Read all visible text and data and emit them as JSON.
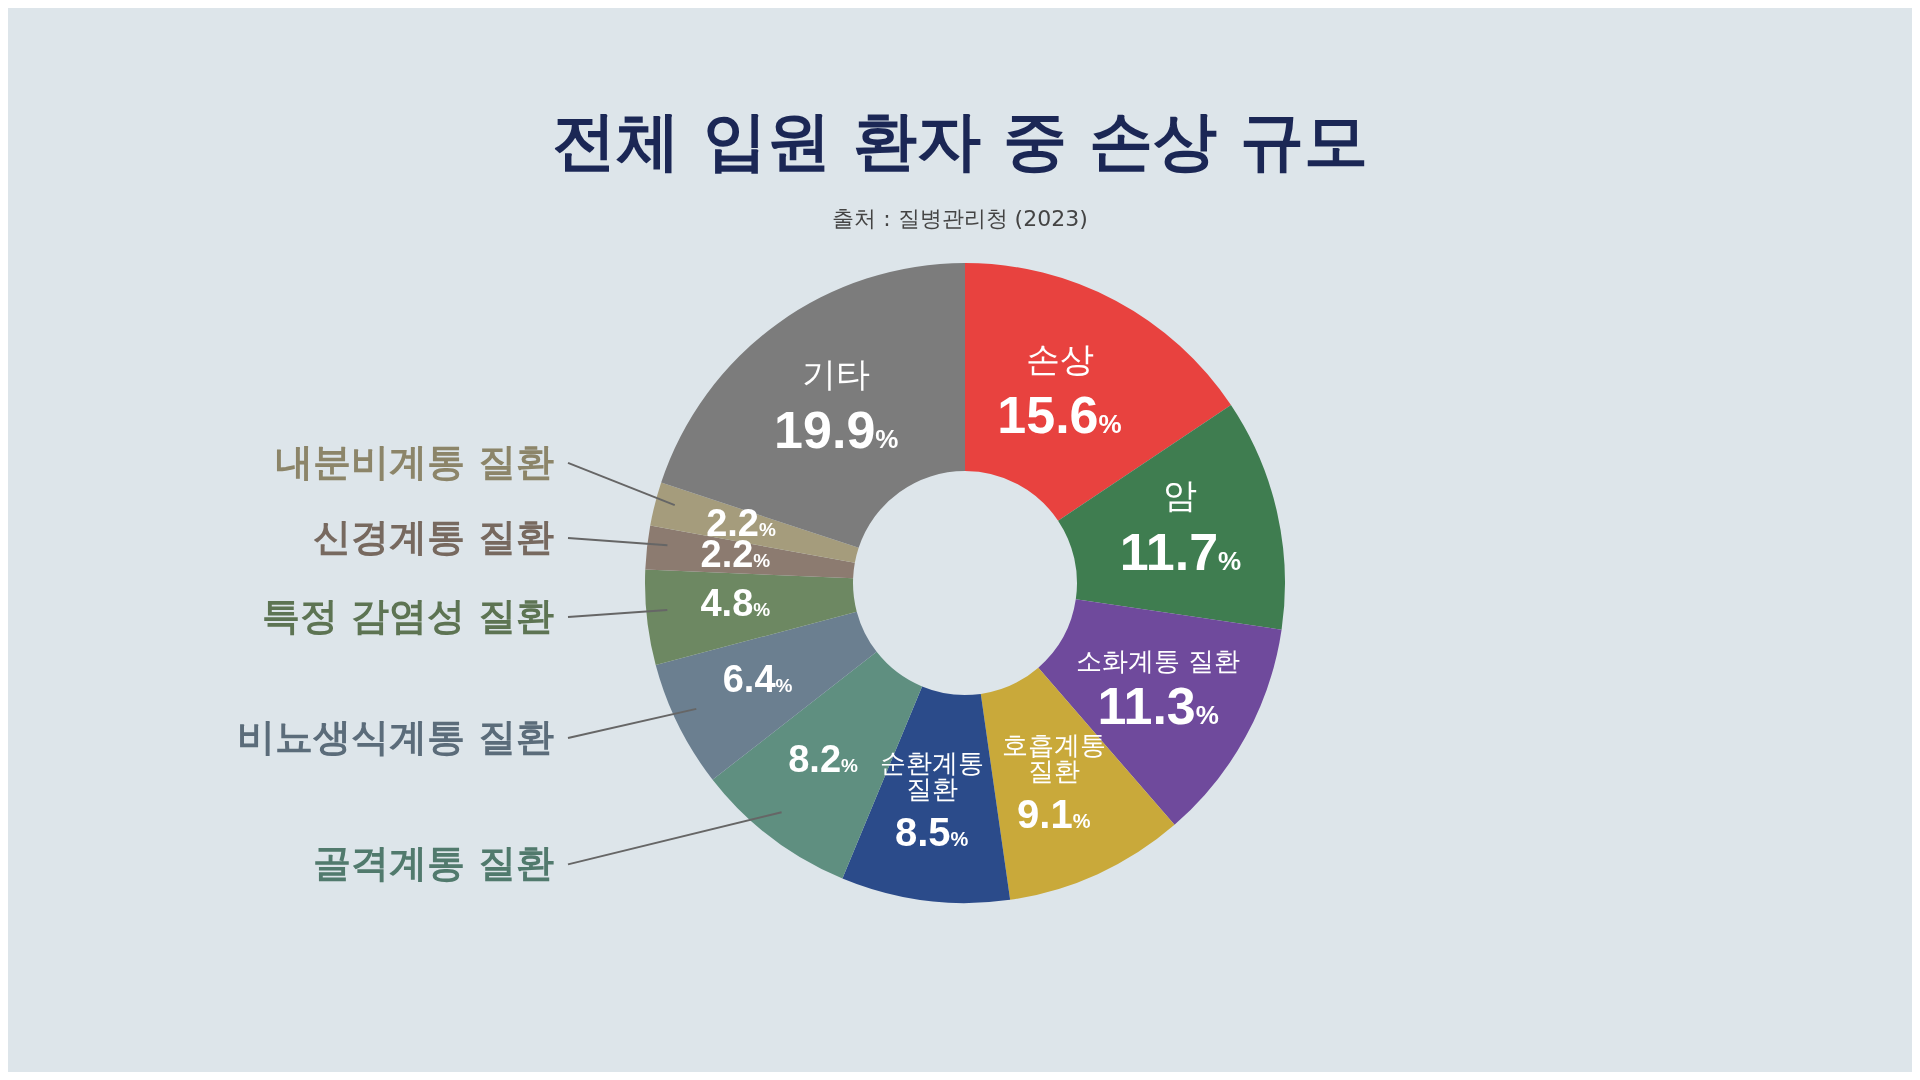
{
  "chart_data": {
    "type": "donut",
    "title": "전체 입원 환자 중 손상 규모",
    "annotations": [
      "출처 : 질병관리청 (2023)"
    ],
    "categories": [
      "손상",
      "암",
      "소화계통 질환",
      "호흡계통 질환",
      "순환계통 질환",
      "골격계통 질환",
      "비뇨생식계통 질환",
      "특정 감염성 질환",
      "신경계통 질환",
      "내분비계통 질환",
      "기타"
    ],
    "values": [
      15.6,
      11.7,
      11.3,
      9.1,
      8.5,
      8.2,
      6.4,
      4.8,
      2.2,
      2.2,
      19.9
    ],
    "value_labels": [
      "15.6%",
      "11.7%",
      "11.3%",
      "9.1%",
      "8.5%",
      "8.2%",
      "6.4%",
      "4.8%",
      "2.2%",
      "2.2%",
      "19.9%"
    ],
    "colors": [
      "#e8423f",
      "#3f7d50",
      "#6f4a9c",
      "#c9a93a",
      "#2b4b8a",
      "#5f8f80",
      "#6b7f90",
      "#6d8862",
      "#8c7b70",
      "#a59c7c",
      "#7c7c7c"
    ]
  }
}
